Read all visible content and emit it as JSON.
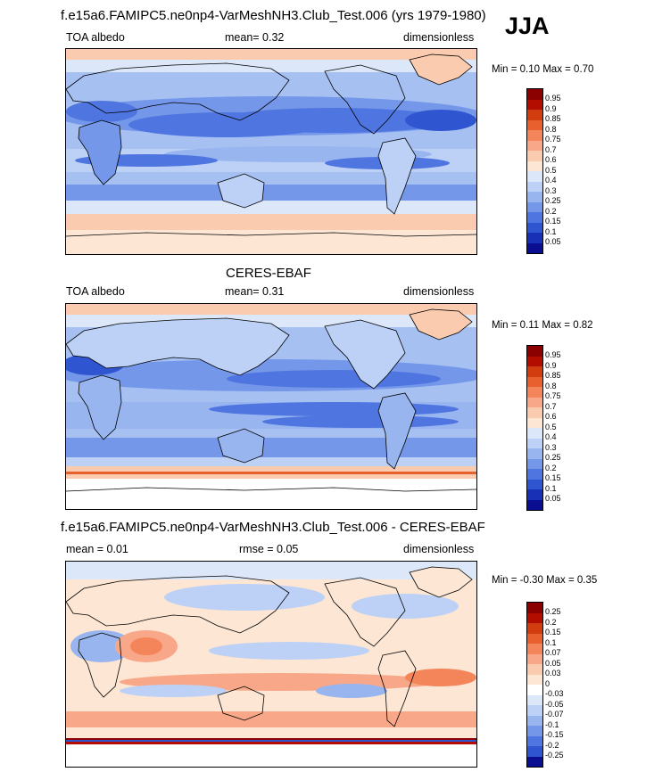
{
  "header": {
    "title": "f.e15a6.FAMIPC5.ne0np4-VarMeshNH3.Club_Test.006 (yrs 1979-1980)",
    "season": "JJA"
  },
  "panels": [
    {
      "title": "",
      "left_label": "TOA albedo",
      "center_label": "mean=   0.32",
      "right_label": "dimensionless",
      "minmax": "Min =   0.10 Max =   0.70",
      "palette": "albedo",
      "colorbar_labels": [
        "0.95",
        "0.9",
        "0.85",
        "0.8",
        "0.75",
        "0.7",
        "0.6",
        "0.5",
        "0.4",
        "0.3",
        "0.25",
        "0.2",
        "0.15",
        "0.1",
        "0.05"
      ]
    },
    {
      "title": "CERES-EBAF",
      "left_label": "TOA albedo",
      "center_label": "mean=   0.31",
      "right_label": "dimensionless",
      "minmax": "Min =   0.11 Max =   0.82",
      "palette": "albedo",
      "colorbar_labels": [
        "0.95",
        "0.9",
        "0.85",
        "0.8",
        "0.75",
        "0.7",
        "0.6",
        "0.5",
        "0.4",
        "0.3",
        "0.25",
        "0.2",
        "0.15",
        "0.1",
        "0.05"
      ]
    },
    {
      "title": "f.e15a6.FAMIPC5.ne0np4-VarMeshNH3.Club_Test.006 - CERES-EBAF",
      "left_label": "mean =   0.01",
      "center_label": "rmse =   0.05",
      "right_label": "dimensionless",
      "minmax": "Min =  -0.30 Max =   0.35",
      "palette": "diff",
      "colorbar_labels": [
        "0.25",
        "0.2",
        "0.15",
        "0.1",
        "0.07",
        "0.05",
        "0.03",
        "0",
        "-0.03",
        "-0.05",
        "-0.07",
        "-0.1",
        "-0.15",
        "-0.2",
        "-0.25"
      ]
    }
  ],
  "colors": {
    "albedo": [
      "#8b0000",
      "#b30d00",
      "#d23d0f",
      "#e8602e",
      "#f4845a",
      "#f8a888",
      "#fbcbb0",
      "#fde6d4",
      "#dce8fa",
      "#bcd1f5",
      "#98b5f0",
      "#7497ea",
      "#4f76e0",
      "#2f55d0",
      "#1830b5",
      "#080e8f"
    ],
    "diff": [
      "#8b0000",
      "#b30d00",
      "#d23d0f",
      "#e8602e",
      "#f4845a",
      "#f8a888",
      "#fbcbb0",
      "#fde6d4",
      "#ffffff",
      "#dce8fa",
      "#bcd1f5",
      "#98b5f0",
      "#7497ea",
      "#4f76e0",
      "#2f55d0",
      "#080e8f"
    ]
  }
}
